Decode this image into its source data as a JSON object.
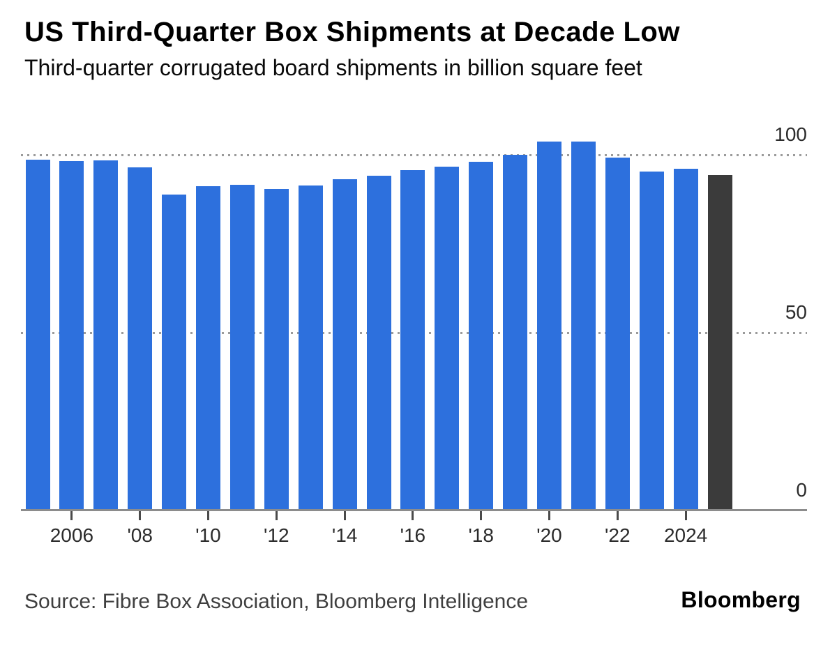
{
  "header": {
    "title": "US Third-Quarter Box Shipments at Decade Low",
    "subtitle": "Third-quarter corrugated board shipments in billion square feet"
  },
  "footer": {
    "source": "Source: Fibre Box Association, Bloomberg Intelligence",
    "brand": "Bloomberg"
  },
  "colors": {
    "bar": "#2d70dd",
    "highlight_bar": "#3b3b3b",
    "gridline": "#9b9b9b",
    "axis_line": "#8c8c8c",
    "tick_mark": "#4a4a4a",
    "axis_text": "#2b2b2b",
    "title_text": "#000000",
    "source_text": "#3f3f3f",
    "background": "#ffffff"
  },
  "chart_data": {
    "type": "bar",
    "title": "US Third-Quarter Box Shipments at Decade Low",
    "subtitle": "Third-quarter corrugated board shipments in billion square feet",
    "unit": "billion square feet",
    "categories": [
      2005,
      2006,
      2007,
      2008,
      2009,
      2010,
      2011,
      2012,
      2013,
      2014,
      2015,
      2016,
      2017,
      2018,
      2019,
      2020,
      2021,
      2022,
      2023,
      2024,
      2025
    ],
    "values": [
      98.6,
      98.3,
      98.5,
      96.4,
      88.8,
      91.2,
      91.5,
      90.4,
      91.3,
      93.2,
      94.1,
      95.6,
      96.6,
      98.1,
      100.0,
      103.7,
      103.8,
      99.3,
      95.3,
      96.0,
      94.4
    ],
    "highlight_category": 2025,
    "series_color": "#2d70dd",
    "highlight_color": "#3b3b3b",
    "ylim": [
      0,
      110
    ],
    "yticks": [
      {
        "value": 0,
        "label": "0"
      },
      {
        "value": 50,
        "label": "50"
      },
      {
        "value": 100,
        "label": "100"
      }
    ],
    "gridlines_at": [
      50,
      100
    ],
    "xticks": [
      {
        "year": 2006,
        "label": "2006"
      },
      {
        "year": 2008,
        "label": "'08"
      },
      {
        "year": 2010,
        "label": "'10"
      },
      {
        "year": 2012,
        "label": "'12"
      },
      {
        "year": 2014,
        "label": "'14"
      },
      {
        "year": 2016,
        "label": "'16"
      },
      {
        "year": 2018,
        "label": "'18"
      },
      {
        "year": 2020,
        "label": "'20"
      },
      {
        "year": 2022,
        "label": "'22"
      },
      {
        "year": 2024,
        "label": "2024"
      }
    ],
    "y_axis_side": "right",
    "legend": "none",
    "grid_style": "dotted"
  }
}
